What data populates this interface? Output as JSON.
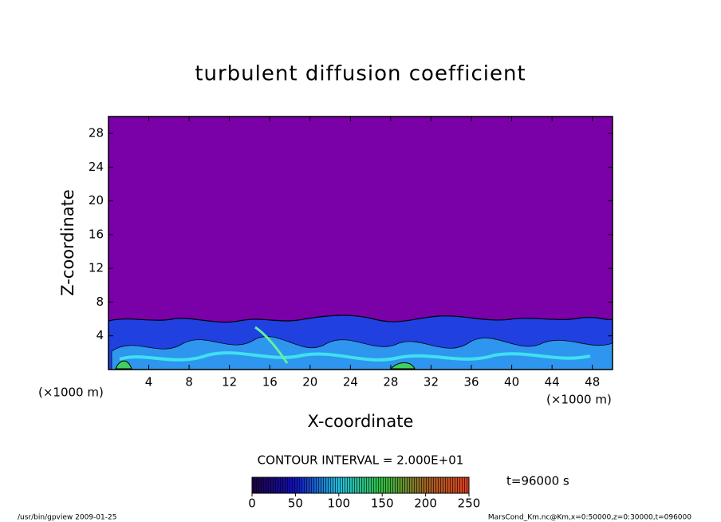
{
  "chart_data": {
    "type": "contour",
    "title": "turbulent diffusion coefficient",
    "xlabel": "X-coordinate",
    "ylabel": "Z-coordinate",
    "xunit": "(×1000 m)",
    "yunit": "(×1000 m)",
    "xlim": [
      0,
      50
    ],
    "ylim": [
      0,
      30
    ],
    "xticks": [
      4,
      8,
      12,
      16,
      20,
      24,
      28,
      32,
      36,
      40,
      44,
      48
    ],
    "yticks": [
      4,
      8,
      12,
      16,
      20,
      24,
      28
    ],
    "contour_interval": "CONTOUR INTERVAL = 2.000E+01",
    "colorbar": {
      "lim": [
        0,
        250
      ],
      "ticks": [
        0,
        50,
        100,
        150,
        200,
        250
      ]
    },
    "time_label": "t=96000 s",
    "footer_left": "/usr/bin/gpview  2009-01-25",
    "footer_right": "MarsCond_Km.nc@Km,x=0:50000,z=0:30000,t=096000"
  }
}
